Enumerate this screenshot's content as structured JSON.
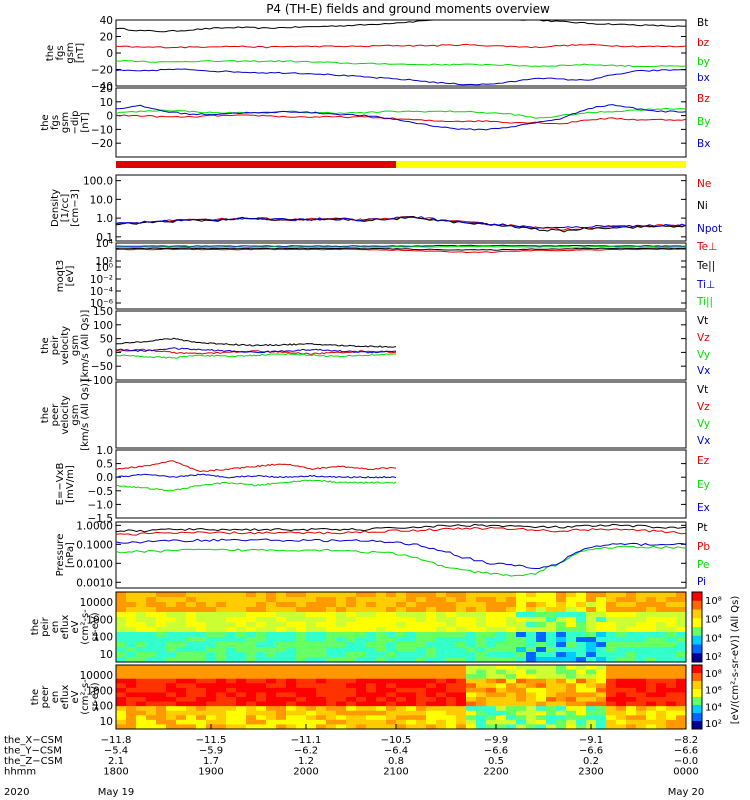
{
  "title": "P4 (TH-E) fields and ground moments overview",
  "colors": {
    "black": "#000000",
    "red": "#e00000",
    "green": "#00dd00",
    "blue": "#0000cc",
    "yellow": "#ffff00"
  },
  "chart_data": [
    {
      "id": "fgs-gsm-mag",
      "type": "line",
      "ylabel": [
        "the",
        "fgs",
        "gsm",
        "[nT]"
      ],
      "ylim": [
        -40,
        40
      ],
      "yticks": [
        "40",
        "20",
        "0",
        "−20",
        "−40"
      ],
      "series": [
        {
          "name": "Bt",
          "color": "black",
          "values": [
            30,
            27,
            26,
            28,
            30,
            31,
            30,
            31,
            32,
            33,
            34,
            36,
            38,
            41,
            42,
            42,
            41,
            40,
            38,
            36,
            35,
            34,
            33,
            32
          ]
        },
        {
          "name": "bz",
          "color": "red",
          "values": [
            8,
            7,
            7,
            7,
            8,
            8,
            7,
            8,
            8,
            8,
            8,
            9,
            9,
            9,
            10,
            9,
            8,
            7,
            9,
            10,
            9,
            8,
            8,
            8
          ]
        },
        {
          "name": "by",
          "color": "green",
          "values": [
            -9,
            -10,
            -11,
            -10,
            -10,
            -10,
            -10,
            -10,
            -11,
            -12,
            -13,
            -13,
            -14,
            -14,
            -14,
            -14,
            -15,
            -16,
            -15,
            -14,
            -15,
            -16,
            -16,
            -16
          ]
        },
        {
          "name": "bx",
          "color": "blue",
          "values": [
            -21,
            -22,
            -20,
            -20,
            -22,
            -23,
            -24,
            -24,
            -25,
            -27,
            -29,
            -31,
            -33,
            -36,
            -38,
            -38,
            -35,
            -30,
            -32,
            -33,
            -27,
            -22,
            -21,
            -20
          ]
        }
      ]
    },
    {
      "id": "fgs-gsm-bz",
      "type": "line",
      "ylabel": [
        "the",
        "fgs",
        "gsm",
        "−dip",
        "[nT]"
      ],
      "ylim": [
        -30,
        20
      ],
      "yticks": [
        "20",
        "10",
        "0",
        "−10",
        "−20"
      ],
      "series": [
        {
          "name": "Bz",
          "color": "red",
          "values": [
            0,
            0,
            -1,
            -1,
            0,
            0,
            0,
            -1,
            -1,
            -1,
            -1,
            -2,
            -3,
            -4,
            -4,
            -4,
            -5,
            -5,
            -6,
            -3,
            -2,
            -3,
            -3,
            -3
          ]
        },
        {
          "name": "By",
          "color": "green",
          "values": [
            2,
            3,
            4,
            3,
            2,
            2,
            2,
            3,
            2,
            2,
            2,
            3,
            3,
            3,
            3,
            2,
            1,
            -2,
            0,
            2,
            3,
            4,
            5,
            5
          ]
        },
        {
          "name": "Bx",
          "color": "blue",
          "values": [
            5,
            7,
            3,
            1,
            1,
            2,
            2,
            3,
            2,
            1,
            0,
            -2,
            -5,
            -8,
            -10,
            -10,
            -8,
            -5,
            -2,
            5,
            8,
            5,
            3,
            3
          ]
        }
      ]
    },
    {
      "id": "density",
      "type": "line",
      "ylabel": [
        "Density",
        "[1/cc]",
        "[cm−3]"
      ],
      "log": true,
      "ylim": [
        0.06,
        200
      ],
      "yticks": [
        "100.0",
        "10.0",
        "1.0",
        "0.1"
      ],
      "series": [
        {
          "name": "Ne",
          "color": "red",
          "values": [
            0.5,
            0.6,
            0.7,
            0.8,
            0.8,
            1.0,
            0.9,
            0.8,
            0.9,
            0.9,
            0.8,
            0.9,
            1.2,
            0.8,
            0.6,
            0.5,
            0.4,
            0.3,
            0.25,
            0.3,
            0.35,
            0.35,
            0.4,
            0.4
          ]
        },
        {
          "name": "Ni",
          "color": "black",
          "values": [
            0.45,
            0.55,
            0.65,
            0.75,
            0.75,
            0.95,
            0.85,
            0.75,
            0.85,
            0.85,
            0.75,
            0.85,
            1.1,
            0.75,
            0.55,
            0.45,
            0.35,
            0.25,
            0.2,
            0.28,
            0.32,
            0.33,
            0.37,
            0.37
          ]
        },
        {
          "name": "Npot",
          "color": "blue",
          "values": [
            0.5,
            0.6,
            0.7,
            0.8,
            0.8,
            1.0,
            0.9,
            0.8,
            0.9,
            0.9,
            0.8,
            0.9,
            1.2,
            0.8,
            0.6,
            0.5,
            0.4,
            0.3,
            0.3,
            0.35,
            0.38,
            0.38,
            0.42,
            0.42
          ]
        }
      ]
    },
    {
      "id": "temperature",
      "type": "line",
      "ylabel": [
        "moqt3",
        "[eV]"
      ],
      "log": true,
      "ylim": [
        1e-07,
        10000
      ],
      "yticks": [
        "10⁴",
        "10²",
        "10⁰",
        "10⁻²",
        "10⁻⁴",
        "10⁻⁶"
      ],
      "series": [
        {
          "name": "Te⊥",
          "color": "red",
          "values": [
            800,
            800,
            900,
            900,
            800,
            800,
            900,
            800,
            800,
            900,
            800,
            700,
            500,
            400,
            300,
            300,
            400,
            600,
            500,
            700,
            800,
            900,
            900,
            900
          ]
        },
        {
          "name": "Te||",
          "color": "black",
          "values": [
            1200,
            1200,
            1300,
            1300,
            1200,
            1200,
            1300,
            1200,
            1200,
            1300,
            1200,
            1100,
            900,
            800,
            700,
            700,
            800,
            1000,
            1000,
            1200,
            1300,
            1300,
            1300,
            1300
          ]
        },
        {
          "name": "Ti⊥",
          "color": "blue",
          "values": [
            3000,
            3000,
            3100,
            3000,
            3000,
            3000,
            3100,
            3000,
            3000,
            3000,
            3000,
            3100,
            3200,
            3500,
            3600,
            3700,
            3500,
            3200,
            3300,
            3400,
            3300,
            3200,
            3200,
            3200
          ]
        },
        {
          "name": "Ti||",
          "color": "green",
          "values": [
            2000,
            2000,
            2100,
            2000,
            2000,
            2000,
            2100,
            2000,
            2000,
            2000,
            2000,
            2100,
            2200,
            2400,
            2500,
            2600,
            2400,
            2200,
            2300,
            2300,
            2300,
            2200,
            2200,
            2200
          ]
        }
      ]
    },
    {
      "id": "peir-velocity",
      "type": "line",
      "ylabel": [
        "the",
        "peir",
        "velocity",
        "gsm",
        "[km/s (All Qs)]"
      ],
      "ylim": [
        -100,
        150
      ],
      "yticks": [
        "150",
        "100",
        "50",
        "0",
        "−50",
        "−100"
      ],
      "x_end": 2110,
      "series": [
        {
          "name": "Vt",
          "color": "black",
          "values": [
            30,
            40,
            50,
            35,
            30,
            25,
            28,
            30,
            25,
            22,
            20
          ]
        },
        {
          "name": "Vz",
          "color": "red",
          "values": [
            5,
            10,
            0,
            -5,
            0,
            5,
            0,
            -5,
            0,
            5,
            0
          ]
        },
        {
          "name": "Vy",
          "color": "green",
          "values": [
            -10,
            -15,
            -20,
            -10,
            -15,
            -10,
            -5,
            -10,
            -15,
            -10,
            -5
          ]
        },
        {
          "name": "Vx",
          "color": "blue",
          "values": [
            10,
            5,
            15,
            10,
            5,
            0,
            5,
            10,
            5,
            0,
            5
          ]
        }
      ]
    },
    {
      "id": "peer-velocity",
      "type": "line",
      "ylabel": [
        "the",
        "peer",
        "velocity",
        "gsm",
        "[km/s (All Qs)]"
      ],
      "series": [
        {
          "name": "Vt",
          "color": "black",
          "values": []
        },
        {
          "name": "Vz",
          "color": "red",
          "values": []
        },
        {
          "name": "Vy",
          "color": "green",
          "values": []
        },
        {
          "name": "Vx",
          "color": "blue",
          "values": []
        }
      ]
    },
    {
      "id": "efield",
      "type": "line",
      "ylabel": [
        "E=−VxB",
        "[mV/m]"
      ],
      "ylim": [
        -1.5,
        1.0
      ],
      "yticks": [
        "1.0",
        "0.5",
        "0.0",
        "−0.5",
        "−1.0",
        "−1.5"
      ],
      "x_end": 2110,
      "series": [
        {
          "name": "Ez",
          "color": "red",
          "values": [
            0.3,
            0.4,
            0.6,
            0.2,
            0.3,
            0.4,
            0.5,
            0.3,
            0.4,
            0.3,
            0.35
          ]
        },
        {
          "name": "Ey",
          "color": "green",
          "values": [
            -0.3,
            -0.4,
            -0.5,
            -0.3,
            -0.2,
            -0.3,
            -0.2,
            -0.1,
            -0.2,
            -0.2,
            -0.2
          ]
        },
        {
          "name": "Ex",
          "color": "blue",
          "values": [
            0.0,
            0.1,
            0.0,
            0.1,
            0.0,
            0.05,
            0.0,
            0.05,
            0.0,
            0.0,
            0.0
          ]
        }
      ]
    },
    {
      "id": "pressure",
      "type": "line",
      "ylabel": [
        "Pressure",
        "[nPa]"
      ],
      "log": true,
      "ylim": [
        0.0005,
        1.5
      ],
      "yticks": [
        "1.0000",
        "0.1000",
        "0.0100",
        "0.0010"
      ],
      "series": [
        {
          "name": "Pt",
          "color": "black",
          "values": [
            0.5,
            0.5,
            0.6,
            0.6,
            0.6,
            0.6,
            0.6,
            0.6,
            0.6,
            0.6,
            0.6,
            0.7,
            0.8,
            0.9,
            1.0,
            1.0,
            0.9,
            0.8,
            0.8,
            0.9,
            1.0,
            0.9,
            0.8,
            0.7
          ]
        },
        {
          "name": "Pb",
          "color": "red",
          "values": [
            0.35,
            0.35,
            0.4,
            0.4,
            0.4,
            0.4,
            0.4,
            0.4,
            0.4,
            0.4,
            0.45,
            0.5,
            0.55,
            0.6,
            0.7,
            0.7,
            0.65,
            0.55,
            0.5,
            0.6,
            0.65,
            0.55,
            0.45,
            0.4
          ]
        },
        {
          "name": "Pe",
          "color": "green",
          "values": [
            0.04,
            0.04,
            0.045,
            0.05,
            0.05,
            0.05,
            0.05,
            0.05,
            0.05,
            0.05,
            0.04,
            0.035,
            0.02,
            0.008,
            0.004,
            0.003,
            0.002,
            0.003,
            0.01,
            0.05,
            0.07,
            0.07,
            0.07,
            0.07
          ]
        },
        {
          "name": "Pi",
          "color": "blue",
          "values": [
            0.12,
            0.13,
            0.15,
            0.16,
            0.17,
            0.17,
            0.17,
            0.16,
            0.16,
            0.16,
            0.15,
            0.13,
            0.1,
            0.05,
            0.02,
            0.01,
            0.008,
            0.005,
            0.01,
            0.06,
            0.1,
            0.1,
            0.1,
            0.1
          ]
        }
      ]
    },
    {
      "id": "peir-spectrogram",
      "type": "heatmap",
      "ylabel": [
        "the",
        "peir",
        "en",
        "eflux",
        "eV",
        "(cm²-s-",
        "sr-eV)"
      ],
      "yticks": [
        "10000",
        "1000",
        "100",
        "10"
      ]
    },
    {
      "id": "peer-spectrogram",
      "type": "heatmap",
      "ylabel": [
        "the",
        "peer",
        "en",
        "eflux",
        "eV",
        "(cm²-s-",
        "sr-eV)"
      ],
      "yticks": [
        "10000",
        "1000",
        "100",
        "10"
      ]
    }
  ],
  "colorbar": {
    "label": "[eV/(cm²-s-sr-eV)] (All Qs)",
    "ticks_top": [
      "10⁸",
      "10⁶",
      "10⁴",
      "10²"
    ],
    "ticks_bottom": [
      "10⁸",
      "10⁶",
      "10⁴",
      "10²"
    ]
  },
  "xaxis": {
    "rows": [
      {
        "label": "the_X−CSM",
        "values": [
          "−11.8",
          "−11.5",
          "−11.1",
          "−10.5",
          "−9.9",
          "−9.1",
          "−8.2"
        ]
      },
      {
        "label": "the_Y−CSM",
        "values": [
          "−5.4",
          "−5.9",
          "−6.2",
          "−6.4",
          "−6.6",
          "−6.6",
          "−6.6"
        ]
      },
      {
        "label": "the_Z−CSM",
        "values": [
          "2.1",
          "1.7",
          "1.2",
          "0.8",
          "0.5",
          "0.2",
          "−0.0"
        ]
      },
      {
        "label": "hhmm",
        "values": [
          "1800",
          "1900",
          "2000",
          "2100",
          "2200",
          "2300",
          "0000"
        ]
      }
    ],
    "year": "2020",
    "start_date": "May 19",
    "end_date": "May 20"
  }
}
